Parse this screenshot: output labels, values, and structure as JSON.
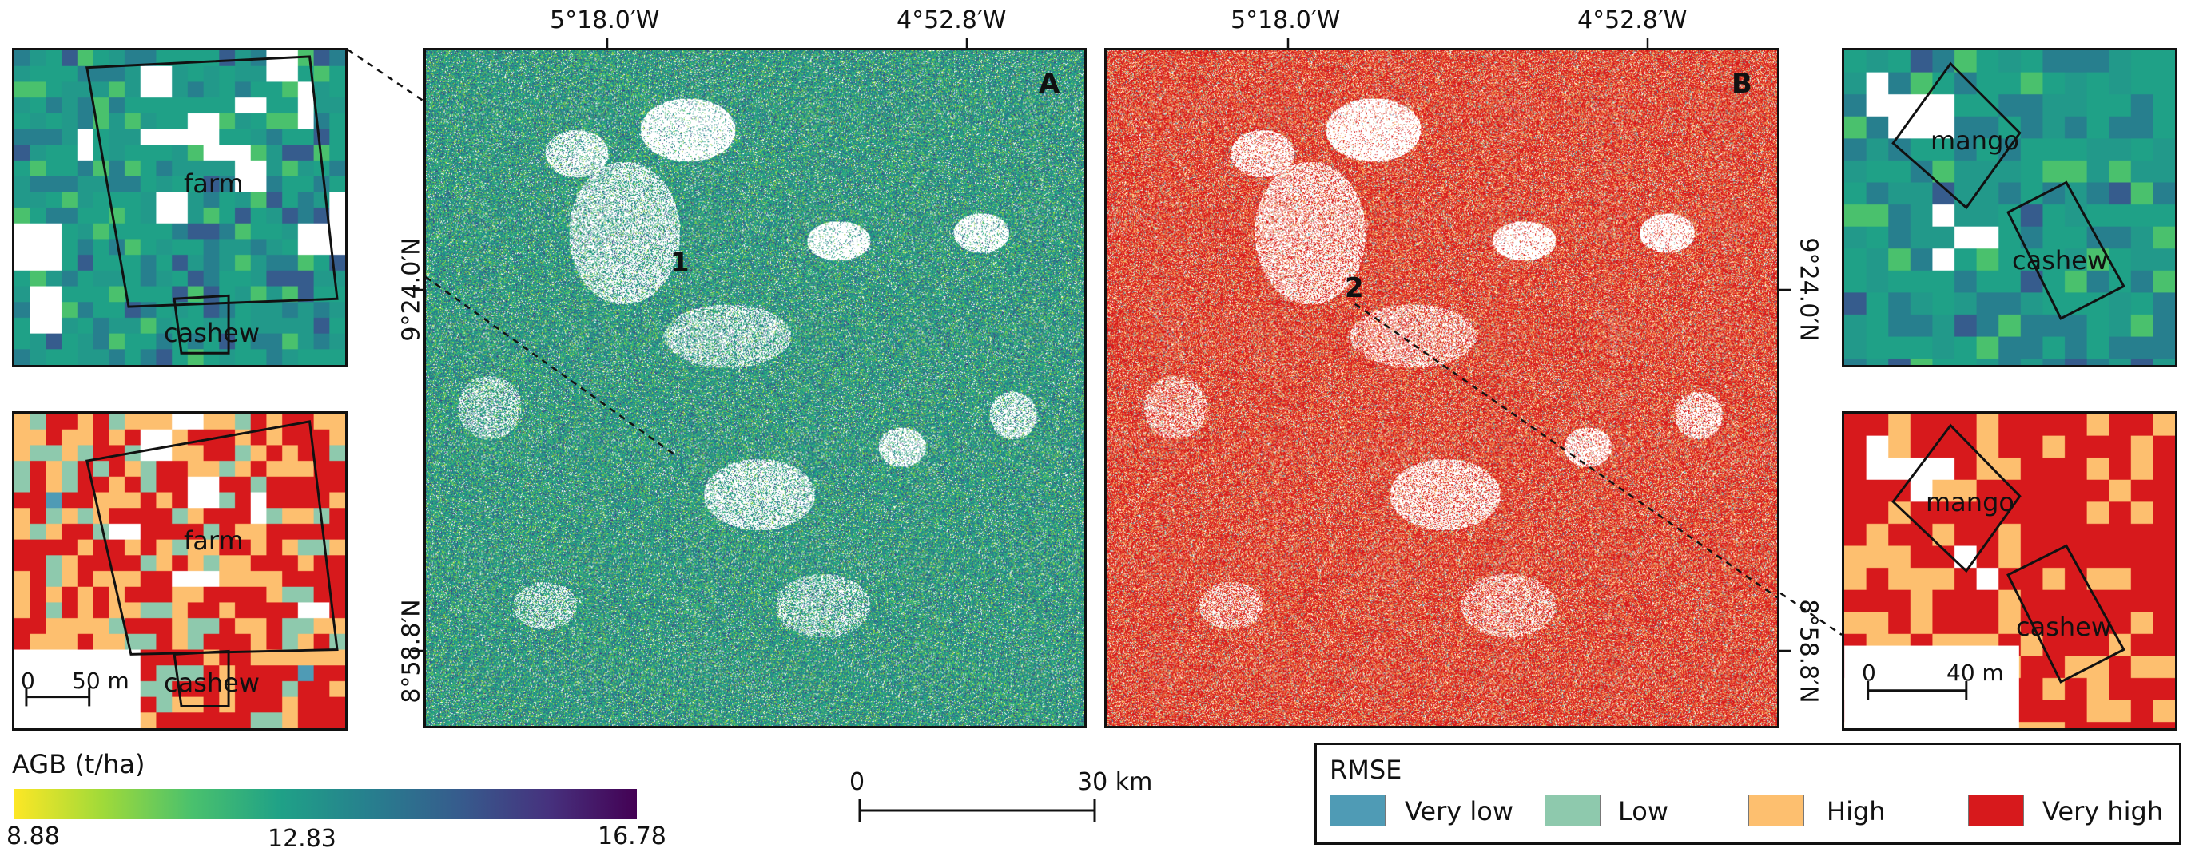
{
  "colors": {
    "viridis": [
      "#fde725",
      "#a0da39",
      "#4ac16d",
      "#1fa187",
      "#277f8e",
      "#365c8d",
      "#46327e",
      "#440154"
    ],
    "rmse": {
      "very_low": "#4f9bb5",
      "low": "#8ec9ad",
      "high": "#fdbf6f",
      "very_high": "#d7191c"
    }
  },
  "map_a": {
    "letter": "A",
    "point_label": "1",
    "x_ticks": [
      "5°18.0′W",
      "4°52.8′W"
    ],
    "y_ticks": [
      "9°24.0′N",
      "8°58.8′N"
    ]
  },
  "map_b": {
    "letter": "B",
    "point_label": "2",
    "x_ticks": [
      "5°18.0′W",
      "4°52.8′W"
    ],
    "y_ticks": [
      "9°24.0′N",
      "8°58.8′N"
    ]
  },
  "inset_left": {
    "farm_label": "farm",
    "cashew_label": "cashew",
    "scale_zero": "0",
    "scale_value": "50 m"
  },
  "inset_right": {
    "mango_label": "mango",
    "cashew_label": "cashew",
    "scale_zero": "0",
    "scale_value": "40 m"
  },
  "colorbar": {
    "title": "AGB (t/ha)",
    "min": "8.88",
    "mid": "12.83",
    "max": "16.78"
  },
  "scalebar": {
    "zero": "0",
    "value": "30 km"
  },
  "legend": {
    "title": "RMSE",
    "items": [
      "Very low",
      "Low",
      "High",
      "Very high"
    ]
  }
}
